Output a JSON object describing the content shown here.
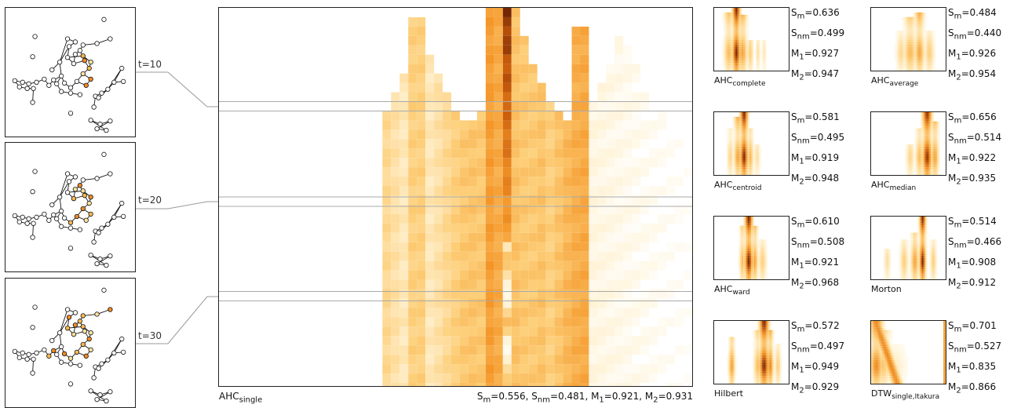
{
  "graphs": [
    {
      "label": "t=10"
    },
    {
      "label": "t=20"
    },
    {
      "label": "t=30"
    }
  ],
  "main": {
    "method": "AHC",
    "method_sub": "single",
    "metrics": {
      "s_m": "0.556",
      "s_nm": "0.481",
      "m1": "0.921",
      "m2": "0.931"
    }
  },
  "thumbnails": [
    {
      "name": "AHC",
      "sub": "complete",
      "s_m": "0.636",
      "s_nm": "0.499",
      "m1": "0.927",
      "m2": "0.947"
    },
    {
      "name": "AHC",
      "sub": "average",
      "s_m": "0.484",
      "s_nm": "0.440",
      "m1": "0.926",
      "m2": "0.954"
    },
    {
      "name": "AHC",
      "sub": "centroid",
      "s_m": "0.581",
      "s_nm": "0.495",
      "m1": "0.919",
      "m2": "0.948"
    },
    {
      "name": "AHC",
      "sub": "median",
      "s_m": "0.656",
      "s_nm": "0.514",
      "m1": "0.922",
      "m2": "0.935"
    },
    {
      "name": "AHC",
      "sub": "ward",
      "s_m": "0.610",
      "s_nm": "0.508",
      "m1": "0.921",
      "m2": "0.968"
    },
    {
      "name": "Morton",
      "sub": "",
      "s_m": "0.514",
      "s_nm": "0.466",
      "m1": "0.908",
      "m2": "0.912"
    },
    {
      "name": "Hilbert",
      "sub": "",
      "s_m": "0.572",
      "s_nm": "0.497",
      "m1": "0.949",
      "m2": "0.929"
    },
    {
      "name": "DTW",
      "sub": "single,Itakura",
      "s_m": "0.701",
      "s_nm": "0.527",
      "m1": "0.835",
      "m2": "0.866"
    }
  ],
  "colors": {
    "light": "#fff3d6",
    "mid": "#f7a63a",
    "dark": "#7a2a05",
    "line": "#999999"
  }
}
